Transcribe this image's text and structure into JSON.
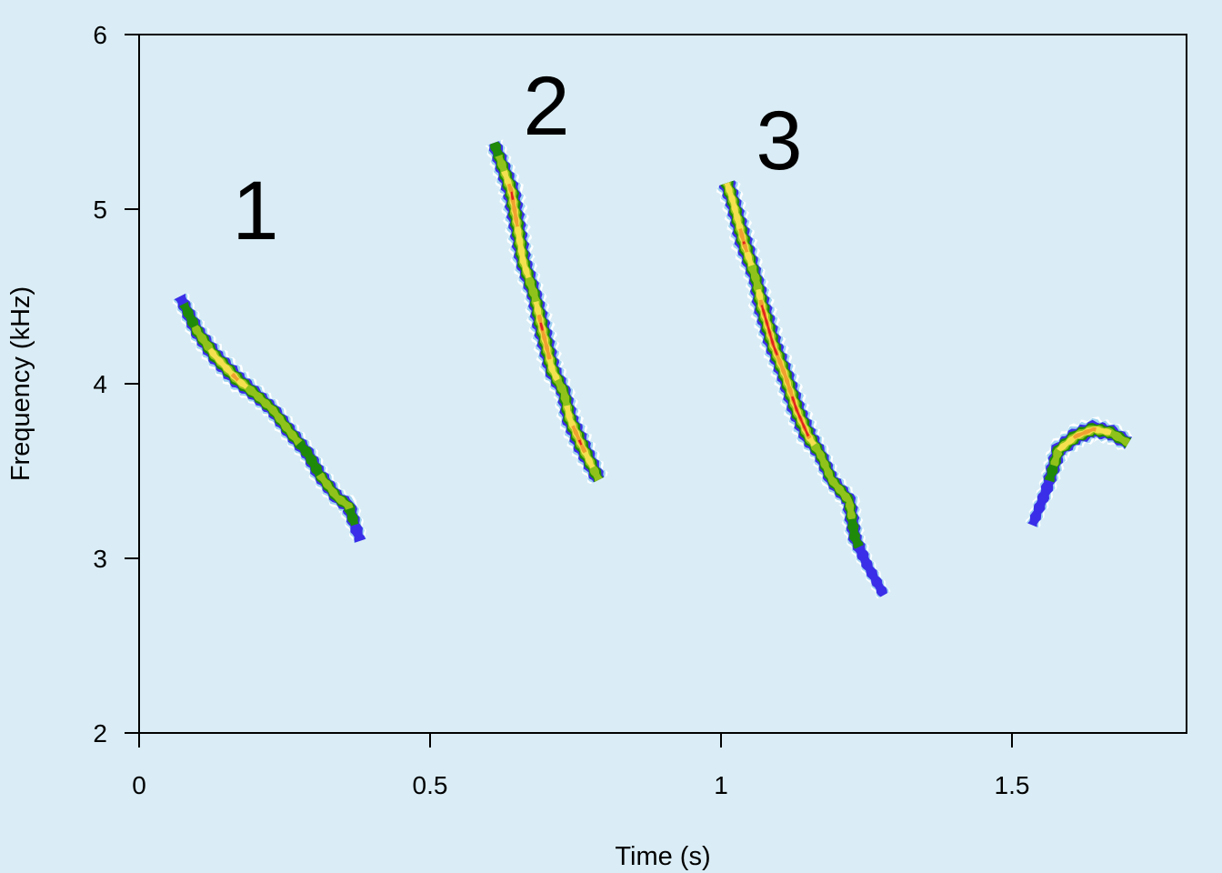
{
  "chart_data": {
    "type": "spectrogram",
    "xlabel": "Time (s)",
    "ylabel": "Frequency (kHz)",
    "xlim": [
      0,
      1.8
    ],
    "ylim": [
      2,
      6
    ],
    "x_ticks": [
      0,
      0.5,
      1,
      1.5
    ],
    "x_tick_labels": [
      "0",
      "0.5",
      "1",
      "1.5"
    ],
    "y_ticks": [
      2,
      3,
      4,
      5,
      6
    ],
    "y_tick_labels": [
      "2",
      "3",
      "4",
      "5",
      "6"
    ],
    "grid": false,
    "background": "#daedf6",
    "color_scale": [
      "#ffffff",
      "#9fd3f0",
      "#3b2ee8",
      "#1f8a0a",
      "#8fc21a",
      "#f5e050",
      "#f0a030",
      "#e02020"
    ],
    "annotations": [
      {
        "text": "1",
        "x": 0.2,
        "y": 5.0
      },
      {
        "text": "2",
        "x": 0.7,
        "y": 5.6
      },
      {
        "text": "3",
        "x": 1.1,
        "y": 5.4
      }
    ],
    "series": [
      {
        "name": "",
        "points": [
          {
            "t": 0.07,
            "f": 4.5,
            "a": 0.35
          },
          {
            "t": 0.1,
            "f": 4.3,
            "a": 0.6
          },
          {
            "t": 0.13,
            "f": 4.16,
            "a": 0.75
          },
          {
            "t": 0.17,
            "f": 4.02,
            "a": 0.85
          },
          {
            "t": 0.2,
            "f": 3.94,
            "a": 0.6
          },
          {
            "t": 0.23,
            "f": 3.85,
            "a": 0.55
          },
          {
            "t": 0.26,
            "f": 3.72,
            "a": 0.6
          },
          {
            "t": 0.29,
            "f": 3.6,
            "a": 0.5
          },
          {
            "t": 0.31,
            "f": 3.48,
            "a": 0.55
          },
          {
            "t": 0.34,
            "f": 3.35,
            "a": 0.55
          },
          {
            "t": 0.36,
            "f": 3.3,
            "a": 0.6
          },
          {
            "t": 0.38,
            "f": 3.1,
            "a": 0.25
          }
        ]
      },
      {
        "name": "",
        "points": [
          {
            "t": 0.61,
            "f": 5.38,
            "a": 0.45
          },
          {
            "t": 0.64,
            "f": 5.1,
            "a": 0.9
          },
          {
            "t": 0.66,
            "f": 4.7,
            "a": 0.75
          },
          {
            "t": 0.68,
            "f": 4.5,
            "a": 0.65
          },
          {
            "t": 0.69,
            "f": 4.35,
            "a": 0.9
          },
          {
            "t": 0.71,
            "f": 4.08,
            "a": 0.8
          },
          {
            "t": 0.73,
            "f": 3.95,
            "a": 0.6
          },
          {
            "t": 0.74,
            "f": 3.8,
            "a": 0.8
          },
          {
            "t": 0.76,
            "f": 3.65,
            "a": 0.9
          },
          {
            "t": 0.79,
            "f": 3.45,
            "a": 0.6
          }
        ]
      },
      {
        "name": "",
        "points": [
          {
            "t": 1.01,
            "f": 5.15,
            "a": 0.8
          },
          {
            "t": 1.02,
            "f": 5.05,
            "a": 0.7
          },
          {
            "t": 1.04,
            "f": 4.8,
            "a": 0.9
          },
          {
            "t": 1.06,
            "f": 4.6,
            "a": 0.6
          },
          {
            "t": 1.07,
            "f": 4.45,
            "a": 0.9
          },
          {
            "t": 1.09,
            "f": 4.22,
            "a": 0.9
          },
          {
            "t": 1.11,
            "f": 4.05,
            "a": 0.85
          },
          {
            "t": 1.13,
            "f": 3.85,
            "a": 0.9
          },
          {
            "t": 1.15,
            "f": 3.7,
            "a": 0.9
          },
          {
            "t": 1.17,
            "f": 3.6,
            "a": 0.55
          },
          {
            "t": 1.19,
            "f": 3.45,
            "a": 0.55
          },
          {
            "t": 1.22,
            "f": 3.33,
            "a": 0.6
          },
          {
            "t": 1.23,
            "f": 3.12,
            "a": 0.5
          },
          {
            "t": 1.25,
            "f": 2.97,
            "a": 0.25
          },
          {
            "t": 1.28,
            "f": 2.79,
            "a": 0.2
          }
        ]
      },
      {
        "name": "",
        "points": [
          {
            "t": 1.535,
            "f": 3.19,
            "a": 0.2
          },
          {
            "t": 1.56,
            "f": 3.4,
            "a": 0.35
          },
          {
            "t": 1.58,
            "f": 3.62,
            "a": 0.7
          },
          {
            "t": 1.61,
            "f": 3.7,
            "a": 0.85
          },
          {
            "t": 1.64,
            "f": 3.74,
            "a": 0.85
          },
          {
            "t": 1.67,
            "f": 3.72,
            "a": 0.7
          },
          {
            "t": 1.7,
            "f": 3.66,
            "a": 0.55
          }
        ]
      }
    ]
  }
}
